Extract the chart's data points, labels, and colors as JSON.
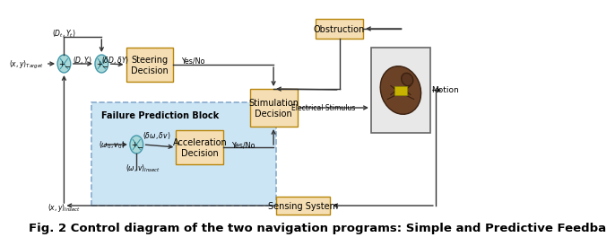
{
  "bg_color": "#ffffff",
  "failure_block_color": "#cce5f5",
  "failure_block_edge": "#88aacc",
  "box_face": "#f5deb3",
  "box_edge": "#b8860b",
  "circle_face": "#aad8d8",
  "circle_edge": "#4499aa",
  "insect_box_edge": "#666666",
  "insect_box_face": "#e8e8e8",
  "arrow_color": "#333333",
  "text_color": "#000000",
  "caption": "Fig. 2 Control diagram of the two navigation programs: Simple and Predictive Feedba"
}
